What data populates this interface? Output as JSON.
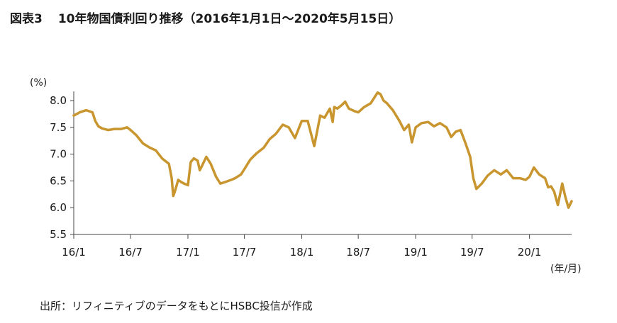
{
  "figure": {
    "number": "図表3",
    "title": "10年物国債利回り推移（2016年1月1日～2020年5月15日）",
    "source": "出所：リフィニティブのデータをもとにHSBC投信が作成"
  },
  "colors": {
    "line": "#C8952E",
    "axis": "#444444",
    "text": "#1a1a1a"
  },
  "chart_data": {
    "type": "line",
    "title": "10年物国債利回り推移（2016年1月1日～2020年5月15日）",
    "ylabel": "(%)",
    "xlabel": "(年/月)",
    "ylim": [
      5.5,
      8.0
    ],
    "xlim": [
      "2016-01",
      "2020-05-15"
    ],
    "yticks": [
      5.5,
      6.0,
      6.5,
      7.0,
      7.5,
      8.0
    ],
    "ytick_labels": [
      "5.5",
      "6.0",
      "6.5",
      "7.0",
      "7.5",
      "8.0"
    ],
    "xticks": [
      "2016-01",
      "2016-07",
      "2017-01",
      "2017-07",
      "2018-01",
      "2018-07",
      "2019-01",
      "2019-07",
      "2020-01"
    ],
    "xtick_labels": [
      "16/1",
      "16/7",
      "17/1",
      "17/7",
      "18/1",
      "18/7",
      "19/1",
      "19/7",
      "20/1"
    ],
    "grid": false,
    "legend": "none",
    "series": [
      {
        "x": [
          "2016-01-01",
          "2016-01-20",
          "2016-02-10",
          "2016-03-01",
          "2016-03-10",
          "2016-03-20",
          "2016-04-01",
          "2016-04-20",
          "2016-05-10",
          "2016-06-01",
          "2016-06-20",
          "2016-07-01",
          "2016-07-20",
          "2016-08-10",
          "2016-09-01",
          "2016-09-20",
          "2016-10-10",
          "2016-11-01",
          "2016-11-10",
          "2016-11-15",
          "2016-11-20",
          "2016-11-25",
          "2016-12-01",
          "2016-12-10",
          "2016-12-20",
          "2017-01-01",
          "2017-01-10",
          "2017-01-20",
          "2017-02-01",
          "2017-02-08",
          "2017-02-15",
          "2017-03-01",
          "2017-03-15",
          "2017-04-01",
          "2017-04-15",
          "2017-05-01",
          "2017-05-20",
          "2017-06-01",
          "2017-06-20",
          "2017-07-01",
          "2017-07-20",
          "2017-08-10",
          "2017-09-01",
          "2017-09-20",
          "2017-10-10",
          "2017-11-01",
          "2017-11-20",
          "2017-12-10",
          "2018-01-01",
          "2018-01-20",
          "2018-02-10",
          "2018-03-01",
          "2018-03-15",
          "2018-04-01",
          "2018-04-10",
          "2018-04-15",
          "2018-04-25",
          "2018-05-10",
          "2018-05-20",
          "2018-06-01",
          "2018-06-20",
          "2018-07-01",
          "2018-07-20",
          "2018-08-10",
          "2018-09-01",
          "2018-09-10",
          "2018-09-20",
          "2018-10-01",
          "2018-10-20",
          "2018-11-10",
          "2018-11-25",
          "2018-12-10",
          "2018-12-20",
          "2019-01-01",
          "2019-01-20",
          "2019-02-10",
          "2019-03-01",
          "2019-03-20",
          "2019-04-10",
          "2019-04-25",
          "2019-05-10",
          "2019-05-25",
          "2019-06-10",
          "2019-06-25",
          "2019-07-05",
          "2019-07-15",
          "2019-08-01",
          "2019-08-20",
          "2019-09-10",
          "2019-10-01",
          "2019-10-20",
          "2019-11-10",
          "2019-12-01",
          "2019-12-20",
          "2020-01-01",
          "2020-01-15",
          "2020-02-01",
          "2020-02-20",
          "2020-03-01",
          "2020-03-10",
          "2020-03-20",
          "2020-04-01",
          "2020-04-15",
          "2020-04-25",
          "2020-05-05",
          "2020-05-15"
        ],
        "values": [
          7.72,
          7.78,
          7.82,
          7.78,
          7.62,
          7.52,
          7.48,
          7.45,
          7.47,
          7.47,
          7.5,
          7.45,
          7.35,
          7.2,
          7.12,
          7.07,
          6.92,
          6.82,
          6.55,
          6.22,
          6.3,
          6.4,
          6.52,
          6.48,
          6.45,
          6.42,
          6.85,
          6.92,
          6.88,
          6.7,
          6.78,
          6.95,
          6.82,
          6.58,
          6.45,
          6.48,
          6.52,
          6.55,
          6.62,
          6.72,
          6.9,
          7.02,
          7.12,
          7.28,
          7.38,
          7.55,
          7.5,
          7.3,
          7.62,
          7.62,
          7.15,
          7.72,
          7.68,
          7.85,
          7.6,
          7.88,
          7.85,
          7.92,
          7.98,
          7.85,
          7.8,
          7.78,
          7.88,
          7.95,
          8.15,
          8.12,
          8.0,
          7.95,
          7.82,
          7.62,
          7.45,
          7.55,
          7.22,
          7.5,
          7.58,
          7.6,
          7.52,
          7.58,
          7.5,
          7.32,
          7.42,
          7.45,
          7.2,
          6.95,
          6.55,
          6.35,
          6.45,
          6.6,
          6.7,
          6.62,
          6.7,
          6.55,
          6.55,
          6.52,
          6.58,
          6.75,
          6.62,
          6.55,
          6.38,
          6.4,
          6.3,
          6.05,
          6.45,
          6.2,
          6.0,
          6.12
        ]
      }
    ]
  }
}
